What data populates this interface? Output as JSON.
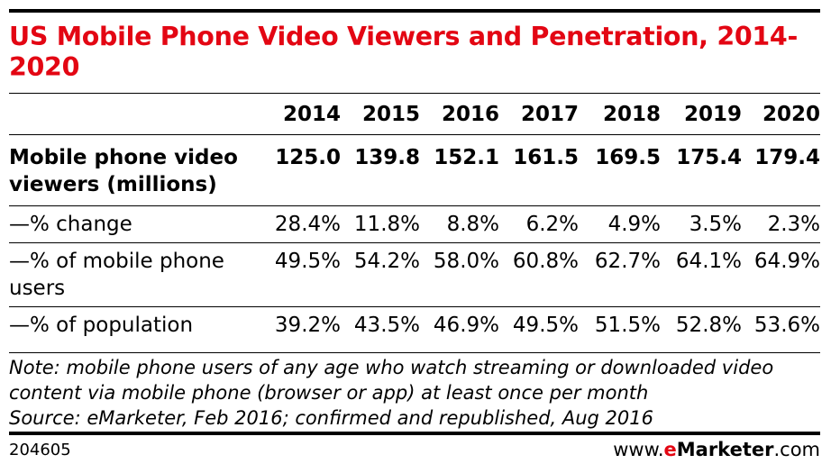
{
  "chart_data": {
    "type": "table",
    "title": "US Mobile Phone Video Viewers and Penetration, 2014-2020",
    "columns": [
      "2014",
      "2015",
      "2016",
      "2017",
      "2018",
      "2019",
      "2020"
    ],
    "rows": [
      {
        "label": "Mobile phone video viewers (millions)",
        "values": [
          "125.0",
          "139.8",
          "152.1",
          "161.5",
          "169.5",
          "175.4",
          "179.4"
        ]
      },
      {
        "label": "—% change",
        "values": [
          "28.4%",
          "11.8%",
          "8.8%",
          "6.2%",
          "4.9%",
          "3.5%",
          "2.3%"
        ]
      },
      {
        "label": "—% of mobile phone users",
        "values": [
          "49.5%",
          "54.2%",
          "58.0%",
          "60.8%",
          "62.7%",
          "64.1%",
          "64.9%"
        ]
      },
      {
        "label": "—% of population",
        "values": [
          "39.2%",
          "43.5%",
          "46.9%",
          "49.5%",
          "51.5%",
          "52.8%",
          "53.6%"
        ]
      }
    ],
    "note": "Note: mobile phone users of any age who watch streaming or downloaded video content via mobile phone (browser or app) at least once per month",
    "source": "Source: eMarketer, Feb 2016; confirmed and republished, Aug 2016"
  },
  "footer": {
    "id": "204605",
    "brand_prefix": "www.",
    "brand_e": "e",
    "brand_name": "Marketer",
    "brand_suffix": ".com"
  },
  "colors": {
    "accent": "#e30613",
    "text": "#000000"
  }
}
